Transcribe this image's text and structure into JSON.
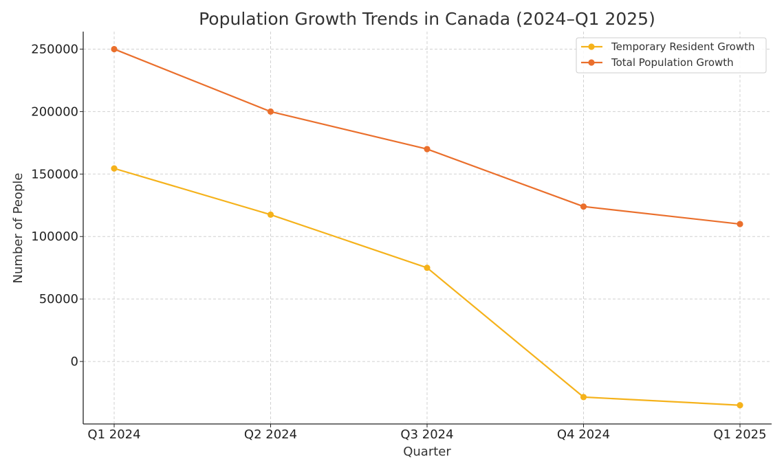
{
  "chart_data": {
    "type": "line",
    "title": "Population Growth Trends in Canada (2024–Q1 2025)",
    "xlabel": "Quarter",
    "ylabel": "Number of People",
    "categories": [
      "Q1 2024",
      "Q2 2024",
      "Q3 2024",
      "Q4 2024",
      "Q1 2025"
    ],
    "series": [
      {
        "name": "Temporary Resident Growth",
        "values": [
          154500,
          117500,
          75000,
          -28500,
          -35000
        ],
        "color": "#f5b21b"
      },
      {
        "name": "Total Population Growth",
        "values": [
          250000,
          200000,
          170000,
          124000,
          110000
        ],
        "color": "#ea6f2c"
      }
    ],
    "yticks": [
      0,
      50000,
      100000,
      150000,
      200000,
      250000
    ],
    "ylim": [
      -50000,
      264000
    ],
    "grid": true,
    "legend": "top-right"
  }
}
